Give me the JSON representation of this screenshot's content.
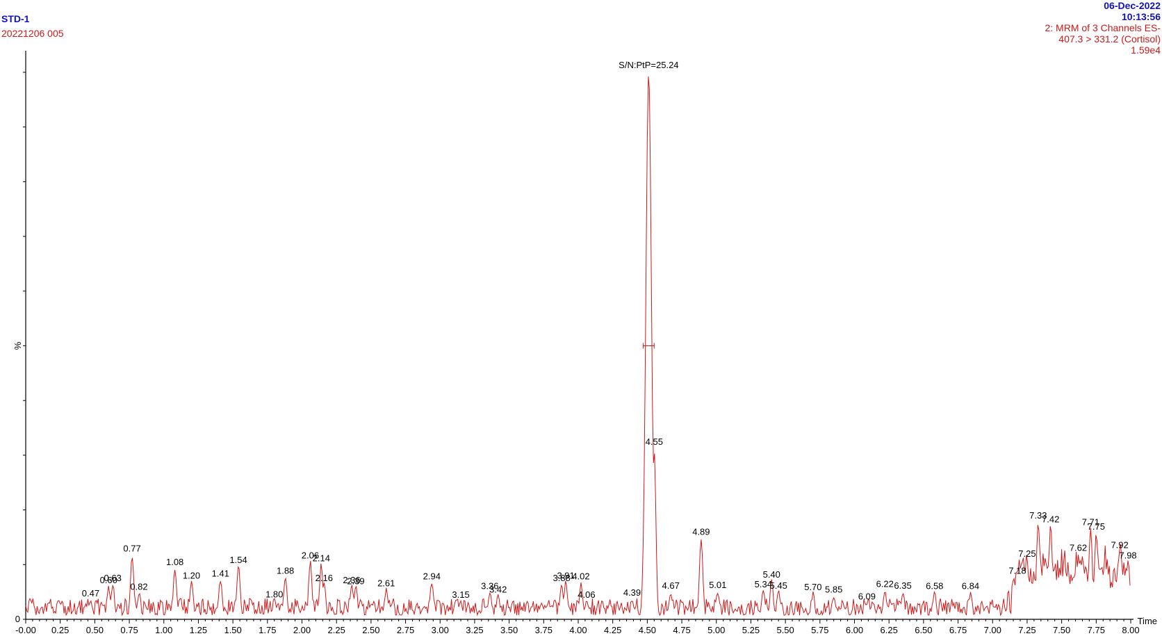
{
  "header": {
    "sample_name": "STD-1",
    "sample_id": "20221206 005",
    "date": "06-Dec-2022",
    "time": "10:13:56",
    "channel_line1": "2: MRM of 3 Channels ES-",
    "channel_line2": "407.3 > 331.2 (Cortisol)",
    "intensity": "1.59e4"
  },
  "chart_data": {
    "type": "line",
    "xlabel": "Time",
    "ylabel": "%",
    "xlim": [
      0,
      8
    ],
    "ylim": [
      0,
      100
    ],
    "x_ticks": [
      "-0.00",
      "0.25",
      "0.50",
      "0.75",
      "1.00",
      "1.25",
      "1.50",
      "1.75",
      "2.00",
      "2.25",
      "2.50",
      "2.75",
      "3.00",
      "3.25",
      "3.50",
      "3.75",
      "4.00",
      "4.25",
      "4.50",
      "4.75",
      "5.00",
      "5.25",
      "5.50",
      "5.75",
      "6.00",
      "6.25",
      "6.50",
      "6.75",
      "7.00",
      "7.25",
      "7.50",
      "7.75",
      "8.00"
    ],
    "y_ticks": [
      "0"
    ],
    "line_color": "#d01818",
    "annotation": "S/N:PtP=25.24",
    "peak_labels": [
      {
        "label": "0.47",
        "x": 0.47,
        "y": 3.2
      },
      {
        "label": "0.60",
        "x": 0.6,
        "y": 5.6
      },
      {
        "label": "0.63",
        "x": 0.63,
        "y": 6.0
      },
      {
        "label": "0.77",
        "x": 0.77,
        "y": 11.4
      },
      {
        "label": "0.82",
        "x": 0.82,
        "y": 4.4
      },
      {
        "label": "1.08",
        "x": 1.08,
        "y": 8.9
      },
      {
        "label": "1.20",
        "x": 1.2,
        "y": 6.4
      },
      {
        "label": "1.41",
        "x": 1.41,
        "y": 6.8
      },
      {
        "label": "1.54",
        "x": 1.54,
        "y": 9.3
      },
      {
        "label": "1.80",
        "x": 1.8,
        "y": 3.0
      },
      {
        "label": "1.88",
        "x": 1.88,
        "y": 7.3
      },
      {
        "label": "2.06",
        "x": 2.06,
        "y": 10.1
      },
      {
        "label": "2.14",
        "x": 2.14,
        "y": 9.6
      },
      {
        "label": "2.16",
        "x": 2.16,
        "y": 6.0
      },
      {
        "label": "2.36",
        "x": 2.36,
        "y": 5.6
      },
      {
        "label": "2.39",
        "x": 2.39,
        "y": 5.4
      },
      {
        "label": "2.61",
        "x": 2.61,
        "y": 5.0
      },
      {
        "label": "2.94",
        "x": 2.94,
        "y": 6.3
      },
      {
        "label": "3.15",
        "x": 3.15,
        "y": 2.9
      },
      {
        "label": "3.36",
        "x": 3.36,
        "y": 4.5
      },
      {
        "label": "3.42",
        "x": 3.42,
        "y": 3.9
      },
      {
        "label": "3.88",
        "x": 3.88,
        "y": 6.0
      },
      {
        "label": "3.91",
        "x": 3.91,
        "y": 6.4
      },
      {
        "label": "4.02",
        "x": 4.02,
        "y": 6.3
      },
      {
        "label": "4.06",
        "x": 4.06,
        "y": 2.9
      },
      {
        "label": "4.39",
        "x": 4.39,
        "y": 3.3
      },
      {
        "label": "4.55",
        "x": 4.55,
        "y": 30.9
      },
      {
        "label": "4.67",
        "x": 4.67,
        "y": 4.6
      },
      {
        "label": "4.89",
        "x": 4.89,
        "y": 14.4
      },
      {
        "label": "5.01",
        "x": 5.01,
        "y": 4.7
      },
      {
        "label": "5.34",
        "x": 5.34,
        "y": 4.8
      },
      {
        "label": "5.40",
        "x": 5.4,
        "y": 6.6
      },
      {
        "label": "5.45",
        "x": 5.45,
        "y": 4.6
      },
      {
        "label": "5.70",
        "x": 5.7,
        "y": 4.3
      },
      {
        "label": "5.85",
        "x": 5.85,
        "y": 3.9
      },
      {
        "label": "6.09",
        "x": 6.09,
        "y": 2.6
      },
      {
        "label": "6.22",
        "x": 6.22,
        "y": 4.9
      },
      {
        "label": "6.35",
        "x": 6.35,
        "y": 4.6
      },
      {
        "label": "6.58",
        "x": 6.58,
        "y": 4.5
      },
      {
        "label": "6.84",
        "x": 6.84,
        "y": 4.5
      },
      {
        "label": "7.18",
        "x": 7.18,
        "y": 7.3
      },
      {
        "label": "7.25",
        "x": 7.25,
        "y": 10.4
      },
      {
        "label": "7.33",
        "x": 7.33,
        "y": 17.4
      },
      {
        "label": "7.42",
        "x": 7.42,
        "y": 16.7
      },
      {
        "label": "7.62",
        "x": 7.62,
        "y": 11.5
      },
      {
        "label": "7.71",
        "x": 7.71,
        "y": 16.2
      },
      {
        "label": "7.75",
        "x": 7.75,
        "y": 15.4
      },
      {
        "label": "7.92",
        "x": 7.92,
        "y": 12.0
      },
      {
        "label": "7.98",
        "x": 7.98,
        "y": 10.1
      }
    ],
    "peak": {
      "x": 4.51,
      "y": 100
    }
  }
}
